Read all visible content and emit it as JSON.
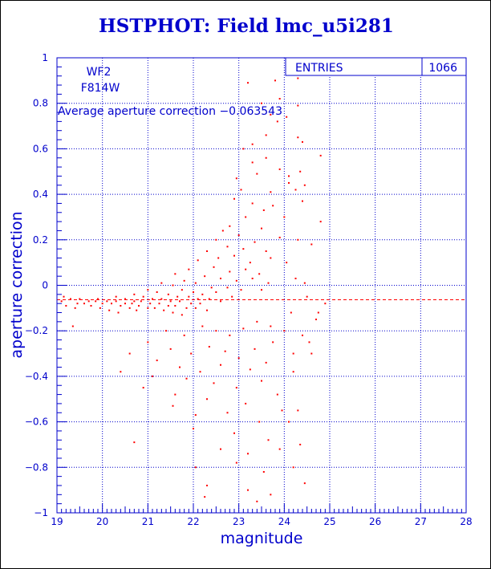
{
  "colors": {
    "axis": "#0000cc",
    "data": "#ff0000",
    "title": "#0000cc",
    "background": "#ffffff"
  },
  "chart_data": {
    "type": "scatter",
    "title": "HSTPHOT: Field lmc_u5i281",
    "xlabel": "magnitude",
    "ylabel": "aperture correction",
    "xlim": [
      19,
      28
    ],
    "ylim": [
      -1,
      1
    ],
    "grid": true,
    "xticks": [
      "19",
      "20",
      "21",
      "22",
      "23",
      "24",
      "25",
      "26",
      "27",
      "28"
    ],
    "yticks": [
      "−1",
      "−0.8",
      "−0.6",
      "−0.4",
      "−0.2",
      "0",
      "0.2",
      "0.4",
      "0.6",
      "0.8",
      "1"
    ],
    "annotations": {
      "chip": "WF2",
      "filter": "F814W",
      "average_text": "Average aperture correction −0.063543"
    },
    "average_line": -0.063543,
    "stats": {
      "label": "ENTRIES",
      "value": "1066"
    },
    "series": [
      {
        "points": [
          [
            23.2,
            0.89
          ],
          [
            23.8,
            0.9
          ],
          [
            24.3,
            0.91
          ],
          [
            23.7,
            0.75
          ],
          [
            23.9,
            0.82
          ],
          [
            23.5,
            0.8
          ],
          [
            24.3,
            0.79
          ],
          [
            23.85,
            0.72
          ],
          [
            24.05,
            0.74
          ],
          [
            23.6,
            0.66
          ],
          [
            23.3,
            0.62
          ],
          [
            24.3,
            0.65
          ],
          [
            23.1,
            0.6
          ],
          [
            24.4,
            0.63
          ],
          [
            24.8,
            0.57
          ],
          [
            23.3,
            0.54
          ],
          [
            23.6,
            0.56
          ],
          [
            23.9,
            0.51
          ],
          [
            24.1,
            0.48
          ],
          [
            24.35,
            0.5
          ],
          [
            24.45,
            0.44
          ],
          [
            22.95,
            0.47
          ],
          [
            23.4,
            0.49
          ],
          [
            23.05,
            0.42
          ],
          [
            23.7,
            0.41
          ],
          [
            24.1,
            0.45
          ],
          [
            22.9,
            0.38
          ],
          [
            23.3,
            0.36
          ],
          [
            23.55,
            0.33
          ],
          [
            24.25,
            0.42
          ],
          [
            22.8,
            0.26
          ],
          [
            23.15,
            0.3
          ],
          [
            23.75,
            0.35
          ],
          [
            24.4,
            0.37
          ],
          [
            24.0,
            0.3
          ],
          [
            24.8,
            0.28
          ],
          [
            22.65,
            0.24
          ],
          [
            23.0,
            0.22
          ],
          [
            23.5,
            0.25
          ],
          [
            23.9,
            0.21
          ],
          [
            24.3,
            0.2
          ],
          [
            22.5,
            0.2
          ],
          [
            22.75,
            0.17
          ],
          [
            23.1,
            0.16
          ],
          [
            23.35,
            0.19
          ],
          [
            23.6,
            0.15
          ],
          [
            24.6,
            0.18
          ],
          [
            22.3,
            0.15
          ],
          [
            22.55,
            0.12
          ],
          [
            22.9,
            0.13
          ],
          [
            23.25,
            0.1
          ],
          [
            23.7,
            0.12
          ],
          [
            24.05,
            0.1
          ],
          [
            22.1,
            0.11
          ],
          [
            22.45,
            0.08
          ],
          [
            22.8,
            0.06
          ],
          [
            23.15,
            0.07
          ],
          [
            23.45,
            0.05
          ],
          [
            21.9,
            0.07
          ],
          [
            22.25,
            0.04
          ],
          [
            22.6,
            0.03
          ],
          [
            22.95,
            0.02
          ],
          [
            23.3,
            0.03
          ],
          [
            23.65,
            0.01
          ],
          [
            24.25,
            0.03
          ],
          [
            24.45,
            0.01
          ],
          [
            21.6,
            0.05
          ],
          [
            21.8,
            0.02
          ],
          [
            22.05,
            0.01
          ],
          [
            22.4,
            -0.01
          ],
          [
            22.75,
            -0.01
          ],
          [
            23.05,
            -0.02
          ],
          [
            23.5,
            -0.02
          ],
          [
            21.3,
            0.01
          ],
          [
            21.55,
            0.0
          ],
          [
            21.75,
            -0.02
          ],
          [
            22.0,
            -0.03
          ],
          [
            22.2,
            -0.04
          ],
          [
            22.5,
            -0.03
          ],
          [
            21.0,
            -0.02
          ],
          [
            21.2,
            -0.03
          ],
          [
            21.45,
            -0.04
          ],
          [
            21.65,
            -0.05
          ],
          [
            21.9,
            -0.05
          ],
          [
            22.1,
            -0.06
          ],
          [
            22.35,
            -0.06
          ],
          [
            22.6,
            -0.07
          ],
          [
            22.85,
            -0.05
          ],
          [
            20.7,
            -0.04
          ],
          [
            20.9,
            -0.05
          ],
          [
            21.1,
            -0.06
          ],
          [
            21.3,
            -0.06
          ],
          [
            21.5,
            -0.07
          ],
          [
            21.7,
            -0.07
          ],
          [
            21.95,
            -0.08
          ],
          [
            22.15,
            -0.08
          ],
          [
            20.3,
            -0.05
          ],
          [
            20.5,
            -0.06
          ],
          [
            20.7,
            -0.07
          ],
          [
            20.85,
            -0.07
          ],
          [
            21.05,
            -0.08
          ],
          [
            21.25,
            -0.08
          ],
          [
            21.45,
            -0.09
          ],
          [
            21.6,
            -0.09
          ],
          [
            21.85,
            -0.1
          ],
          [
            22.05,
            -0.1
          ],
          [
            22.3,
            -0.11
          ],
          [
            19.9,
            -0.06
          ],
          [
            20.1,
            -0.07
          ],
          [
            20.3,
            -0.07
          ],
          [
            20.5,
            -0.08
          ],
          [
            20.65,
            -0.08
          ],
          [
            20.8,
            -0.09
          ],
          [
            21.0,
            -0.1
          ],
          [
            21.15,
            -0.1
          ],
          [
            21.35,
            -0.11
          ],
          [
            21.55,
            -0.12
          ],
          [
            21.75,
            -0.13
          ],
          [
            19.5,
            -0.06
          ],
          [
            19.7,
            -0.07
          ],
          [
            19.85,
            -0.07
          ],
          [
            20.0,
            -0.08
          ],
          [
            20.2,
            -0.08
          ],
          [
            20.4,
            -0.09
          ],
          [
            20.6,
            -0.1
          ],
          [
            20.75,
            -0.11
          ],
          [
            19.1,
            -0.07
          ],
          [
            19.3,
            -0.06
          ],
          [
            19.45,
            -0.08
          ],
          [
            19.6,
            -0.08
          ],
          [
            19.75,
            -0.09
          ],
          [
            19.95,
            -0.1
          ],
          [
            20.15,
            -0.11
          ],
          [
            20.35,
            -0.12
          ],
          [
            19.2,
            -0.09
          ],
          [
            19.4,
            -0.1
          ],
          [
            19.15,
            -0.05
          ],
          [
            19.35,
            -0.18
          ],
          [
            21.4,
            -0.2
          ],
          [
            21.8,
            -0.22
          ],
          [
            22.2,
            -0.18
          ],
          [
            22.5,
            -0.2
          ],
          [
            22.8,
            -0.22
          ],
          [
            23.1,
            -0.19
          ],
          [
            23.4,
            -0.16
          ],
          [
            23.7,
            -0.18
          ],
          [
            24.0,
            -0.2
          ],
          [
            24.4,
            -0.22
          ],
          [
            24.7,
            -0.15
          ],
          [
            21.0,
            -0.25
          ],
          [
            21.5,
            -0.28
          ],
          [
            21.95,
            -0.3
          ],
          [
            22.35,
            -0.27
          ],
          [
            22.7,
            -0.29
          ],
          [
            23.0,
            -0.32
          ],
          [
            23.35,
            -0.28
          ],
          [
            23.75,
            -0.25
          ],
          [
            20.6,
            -0.3
          ],
          [
            21.2,
            -0.33
          ],
          [
            21.7,
            -0.36
          ],
          [
            22.15,
            -0.38
          ],
          [
            22.6,
            -0.35
          ],
          [
            23.25,
            -0.37
          ],
          [
            23.6,
            -0.34
          ],
          [
            24.2,
            -0.3
          ],
          [
            20.4,
            -0.38
          ],
          [
            21.1,
            -0.4
          ],
          [
            21.85,
            -0.41
          ],
          [
            22.45,
            -0.43
          ],
          [
            22.95,
            -0.45
          ],
          [
            23.5,
            -0.42
          ],
          [
            20.9,
            -0.45
          ],
          [
            21.6,
            -0.48
          ],
          [
            22.3,
            -0.5
          ],
          [
            23.15,
            -0.52
          ],
          [
            23.85,
            -0.48
          ],
          [
            21.55,
            -0.53
          ],
          [
            22.05,
            -0.57
          ],
          [
            22.75,
            -0.56
          ],
          [
            23.45,
            -0.6
          ],
          [
            24.3,
            -0.55
          ],
          [
            22.0,
            -0.63
          ],
          [
            22.9,
            -0.65
          ],
          [
            23.65,
            -0.68
          ],
          [
            20.7,
            -0.69
          ],
          [
            22.6,
            -0.72
          ],
          [
            23.2,
            -0.74
          ],
          [
            24.35,
            -0.7
          ],
          [
            22.05,
            -0.8
          ],
          [
            22.95,
            -0.78
          ],
          [
            23.55,
            -0.82
          ],
          [
            24.2,
            -0.8
          ],
          [
            22.3,
            -0.88
          ],
          [
            23.2,
            -0.9
          ],
          [
            24.45,
            -0.87
          ],
          [
            23.7,
            -0.92
          ],
          [
            22.25,
            -0.93
          ],
          [
            23.4,
            -0.95
          ],
          [
            24.1,
            -0.6
          ],
          [
            23.9,
            -0.72
          ],
          [
            24.55,
            -0.25
          ],
          [
            24.15,
            -0.12
          ],
          [
            24.5,
            -0.05
          ],
          [
            24.75,
            -0.12
          ],
          [
            24.9,
            -0.08
          ],
          [
            24.6,
            -0.3
          ],
          [
            24.2,
            -0.38
          ],
          [
            23.95,
            -0.55
          ]
        ]
      }
    ]
  }
}
